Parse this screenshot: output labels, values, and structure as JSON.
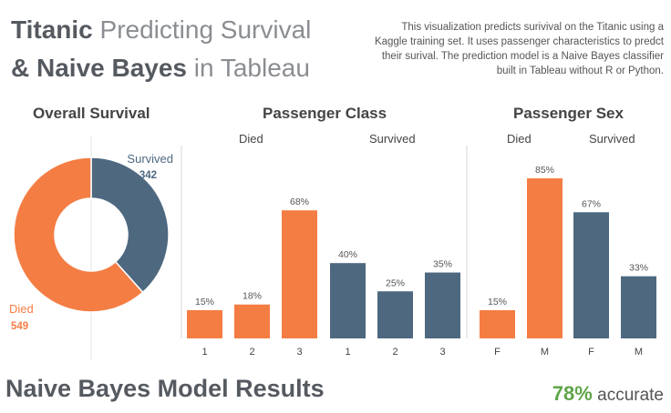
{
  "header": {
    "title_bold_1": "Titanic",
    "title_light_1": "Predicting Survival",
    "title_bold_2": "& Naive Bayes",
    "title_light_2": "in Tableau",
    "description": "This visualization predicts surivival on the Titanic using a Kaggle training set. It uses passenger characteristics to predct their surival. The prediction model is a Naive Bayes classifier built in Tableau without R or Python."
  },
  "colors": {
    "died": "#f47d44",
    "survived": "#4e6880",
    "text": "#555a60",
    "accent_green": "#5fa548"
  },
  "sections": {
    "survival_title": "Overall Survival",
    "class_title": "Passenger Class",
    "sex_title": "Passenger Sex",
    "died_label": "Died",
    "survived_label": "Survived"
  },
  "footer": {
    "model_title": "Naive Bayes Model Results",
    "accuracy_value": "78%",
    "accuracy_label": "accurate"
  },
  "chart_data": [
    {
      "type": "pie",
      "title": "Overall Survival",
      "categories": [
        "Survived",
        "Died"
      ],
      "values": [
        342,
        549
      ]
    },
    {
      "type": "bar",
      "title": "Passenger Class",
      "groups": [
        "Died",
        "Survived"
      ],
      "categories": [
        "1",
        "2",
        "3",
        "1",
        "2",
        "3"
      ],
      "values": [
        15,
        18,
        68,
        40,
        25,
        35
      ],
      "labels": [
        "15%",
        "18%",
        "68%",
        "40%",
        "25%",
        "35%"
      ],
      "series_of_bar": [
        "Died",
        "Died",
        "Died",
        "Survived",
        "Survived",
        "Survived"
      ],
      "ylim": [
        0,
        100
      ]
    },
    {
      "type": "bar",
      "title": "Passenger Sex",
      "groups": [
        "Died",
        "Survived"
      ],
      "categories": [
        "F",
        "M",
        "F",
        "M"
      ],
      "values": [
        15,
        85,
        67,
        33
      ],
      "labels": [
        "15%",
        "85%",
        "67%",
        "33%"
      ],
      "series_of_bar": [
        "Died",
        "Died",
        "Survived",
        "Survived"
      ],
      "ylim": [
        0,
        100
      ]
    }
  ]
}
